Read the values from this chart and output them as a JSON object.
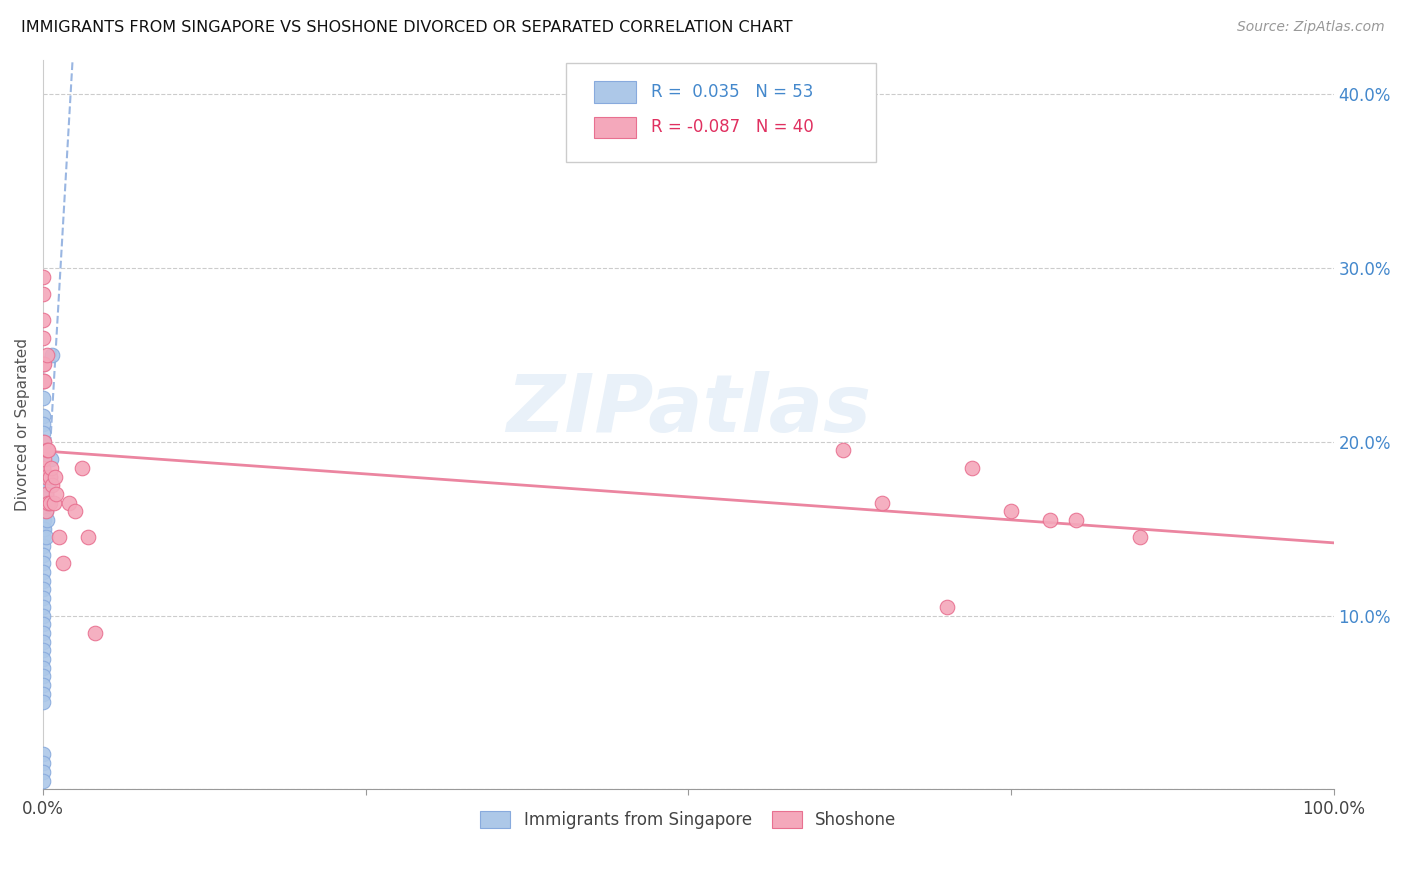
{
  "title": "IMMIGRANTS FROM SINGAPORE VS SHOSHONE DIVORCED OR SEPARATED CORRELATION CHART",
  "source": "Source: ZipAtlas.com",
  "ylabel": "Divorced or Separated",
  "legend_label1": "Immigrants from Singapore",
  "legend_label2": "Shoshone",
  "r1": 0.035,
  "n1": 53,
  "r2": -0.087,
  "n2": 40,
  "color_blue": "#adc8e8",
  "color_pink": "#f4a8bb",
  "color_blue_line": "#88aadd",
  "color_pink_line": "#e87090",
  "color_blue_r": "#4488cc",
  "color_pink_r": "#e03060",
  "watermark": "ZIPatlas",
  "singapore_x": [
    0.0,
    0.0,
    0.0,
    0.0,
    0.0,
    0.0,
    0.0,
    0.0,
    0.0,
    0.0,
    0.0,
    0.0,
    0.0,
    0.0,
    0.0,
    0.0,
    0.0,
    0.0,
    0.0,
    0.0,
    0.0,
    0.0,
    0.0,
    0.0,
    0.0,
    0.0,
    0.0,
    0.0,
    0.0,
    0.0,
    0.0,
    0.0,
    0.0,
    0.0,
    0.0,
    0.0,
    0.0,
    0.0,
    0.0,
    0.0,
    0.0,
    0.001,
    0.001,
    0.002,
    0.002,
    0.002,
    0.003,
    0.003,
    0.004,
    0.004,
    0.005,
    0.006,
    0.007
  ],
  "singapore_y": [
    0.245,
    0.235,
    0.225,
    0.215,
    0.21,
    0.205,
    0.2,
    0.195,
    0.19,
    0.185,
    0.18,
    0.175,
    0.17,
    0.165,
    0.16,
    0.155,
    0.15,
    0.145,
    0.14,
    0.135,
    0.13,
    0.125,
    0.12,
    0.115,
    0.11,
    0.105,
    0.1,
    0.095,
    0.09,
    0.085,
    0.08,
    0.075,
    0.07,
    0.065,
    0.06,
    0.055,
    0.05,
    0.02,
    0.015,
    0.01,
    0.005,
    0.155,
    0.15,
    0.17,
    0.16,
    0.145,
    0.165,
    0.155,
    0.175,
    0.165,
    0.18,
    0.19,
    0.25
  ],
  "shoshone_x": [
    0.0,
    0.0,
    0.0,
    0.0,
    0.0,
    0.0,
    0.0,
    0.001,
    0.001,
    0.001,
    0.001,
    0.002,
    0.002,
    0.002,
    0.003,
    0.003,
    0.004,
    0.004,
    0.005,
    0.005,
    0.006,
    0.007,
    0.008,
    0.009,
    0.01,
    0.012,
    0.015,
    0.02,
    0.025,
    0.03,
    0.035,
    0.04,
    0.62,
    0.65,
    0.7,
    0.72,
    0.75,
    0.78,
    0.8,
    0.85
  ],
  "shoshone_y": [
    0.295,
    0.285,
    0.27,
    0.26,
    0.245,
    0.235,
    0.185,
    0.245,
    0.235,
    0.2,
    0.19,
    0.18,
    0.17,
    0.16,
    0.25,
    0.195,
    0.195,
    0.165,
    0.18,
    0.165,
    0.185,
    0.175,
    0.165,
    0.18,
    0.17,
    0.145,
    0.13,
    0.165,
    0.16,
    0.185,
    0.145,
    0.09,
    0.195,
    0.165,
    0.105,
    0.185,
    0.16,
    0.155,
    0.155,
    0.145
  ],
  "xlim": [
    0.0,
    1.0
  ],
  "ylim": [
    0.0,
    0.42
  ],
  "yticks": [
    0.0,
    0.1,
    0.2,
    0.3,
    0.4
  ],
  "ytick_labels_right": [
    "",
    "10.0%",
    "20.0%",
    "30.0%",
    "40.0%"
  ],
  "xticks": [
    0.0,
    0.25,
    0.5,
    0.75,
    1.0
  ],
  "xtick_labels": [
    "0.0%",
    "",
    "",
    "",
    "100.0%"
  ],
  "grid_color": "#cccccc",
  "bg_color": "#ffffff"
}
